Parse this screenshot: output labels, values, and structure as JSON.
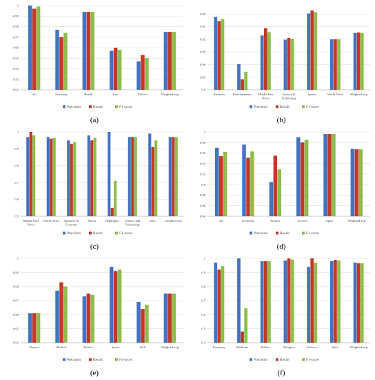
{
  "colors": {
    "precision": "#4472c4",
    "recall": "#c0392b",
    "f1": "#8fbc4a",
    "grid": "#d9d9d9",
    "axis": "#bfbfbf"
  },
  "chart_data": [
    {
      "type": "bar",
      "panel_label": "(a)",
      "categories": [
        "Art",
        "Economy",
        "Health",
        "Law",
        "Politics",
        "Weighted avg"
      ],
      "series": [
        {
          "name": "Precision",
          "values": [
            1.0,
            0.977,
            0.994,
            0.957,
            0.947,
            0.975
          ]
        },
        {
          "name": "Recall",
          "values": [
            0.997,
            0.97,
            0.994,
            0.96,
            0.953,
            0.975
          ]
        },
        {
          "name": "F1-score",
          "values": [
            0.999,
            0.974,
            0.994,
            0.958,
            0.95,
            0.975
          ]
        }
      ],
      "ylim": [
        0.92,
        1.0
      ],
      "yticks": [
        "0.92",
        "0.93",
        "0.94",
        "0.95",
        "0.96",
        "0.97",
        "0.98",
        "0.99",
        "1"
      ],
      "legend": "bottom"
    },
    {
      "type": "bar",
      "panel_label": "(b)",
      "categories": [
        "Business",
        "Entertainments",
        "Middle East News",
        "Science & Technology",
        "Sports",
        "World News",
        "Weighted avg"
      ],
      "series": [
        {
          "name": "Precision",
          "values": [
            0.973,
            0.861,
            0.929,
            0.919,
            0.981,
            0.92,
            0.935
          ]
        },
        {
          "name": "Recall",
          "values": [
            0.963,
            0.825,
            0.946,
            0.923,
            0.988,
            0.92,
            0.936
          ]
        },
        {
          "name": "F1-score",
          "values": [
            0.968,
            0.843,
            0.937,
            0.921,
            0.984,
            0.92,
            0.935
          ]
        }
      ],
      "ylim": [
        0.8,
        1.0
      ],
      "yticks": [
        "0.8",
        "0.83",
        "0.86",
        "0.89",
        "0.92",
        "0.95",
        "0.98"
      ],
      "legend": "bottom"
    },
    {
      "type": "bar",
      "panel_label": "(c)",
      "categories": [
        "Middle East News",
        "World News",
        "Business & Economy",
        "Sports",
        "Highlights",
        "Science and Technology",
        "Misc",
        "weighted avg"
      ],
      "series": [
        {
          "name": "Precision",
          "values": [
            0.97,
            0.97,
            0.95,
            0.98,
            1.0,
            0.97,
            0.99,
            0.97
          ]
        },
        {
          "name": "Recall",
          "values": [
            1.0,
            0.96,
            0.93,
            0.95,
            0.55,
            0.97,
            0.91,
            0.97
          ]
        },
        {
          "name": "F1-score",
          "values": [
            0.98,
            0.965,
            0.94,
            0.965,
            0.71,
            0.97,
            0.95,
            0.97
          ]
        }
      ],
      "ylim": [
        0.5,
        1.0
      ],
      "yticks": [
        "0.5",
        "0.6",
        "0.7",
        "0.8",
        "0.9",
        "1"
      ],
      "legend": "bottom"
    },
    {
      "type": "bar",
      "panel_label": "(d)",
      "categories": [
        "Art",
        "Economic",
        "Politics",
        "Science",
        "Sport",
        "Weighted avg"
      ],
      "series": [
        {
          "name": "Precision",
          "values": [
            0.97,
            0.976,
            0.905,
            0.99,
            0.996,
            0.968
          ]
        },
        {
          "name": "Recall",
          "values": [
            0.954,
            0.951,
            0.955,
            0.98,
            0.996,
            0.967
          ]
        },
        {
          "name": "F1-score",
          "values": [
            0.962,
            0.963,
            0.929,
            0.985,
            0.996,
            0.967
          ]
        }
      ],
      "ylim": [
        0.84,
        1.0
      ],
      "yticks": [
        "0.84",
        "0.86",
        "0.88",
        "0.9",
        "0.92",
        "0.94",
        "0.96",
        "0.98",
        "1"
      ],
      "legend": "bottom"
    },
    {
      "type": "bar",
      "panel_label": "(e)",
      "categories": [
        "Finance",
        "Medical",
        "Politics",
        "Sports",
        "Tech",
        "Weighted avg"
      ],
      "series": [
        {
          "name": "Precision",
          "values": [
            0.961,
            0.977,
            0.973,
            0.994,
            0.969,
            0.975
          ]
        },
        {
          "name": "Recall",
          "values": [
            0.961,
            0.983,
            0.975,
            0.991,
            0.964,
            0.975
          ]
        },
        {
          "name": "F1-score",
          "values": [
            0.961,
            0.98,
            0.974,
            0.992,
            0.967,
            0.975
          ]
        }
      ],
      "ylim": [
        0.94,
        1.0
      ],
      "yticks": [
        "0.94",
        "0.95",
        "0.96",
        "0.97",
        "0.98",
        "0.99",
        "1"
      ],
      "legend": "bottom"
    },
    {
      "type": "bar",
      "panel_label": "(f)",
      "categories": [
        "Economy",
        "Medicine",
        "Politics",
        "Religion",
        "Science",
        "Sport",
        "Weighted avg"
      ],
      "series": [
        {
          "name": "Precision",
          "values": [
            0.97,
            1.0,
            0.98,
            0.985,
            0.94,
            0.98,
            0.97
          ]
        },
        {
          "name": "Recall",
          "values": [
            0.92,
            0.48,
            0.98,
            1.0,
            1.0,
            0.99,
            0.965
          ]
        },
        {
          "name": "F1-score",
          "values": [
            0.945,
            0.645,
            0.98,
            0.992,
            0.97,
            0.985,
            0.965
          ]
        }
      ],
      "ylim": [
        0.4,
        1.0
      ],
      "yticks": [
        "0.4",
        "0.5",
        "0.6",
        "0.7",
        "0.8",
        "0.9",
        "1"
      ],
      "legend": "bottom"
    }
  ]
}
